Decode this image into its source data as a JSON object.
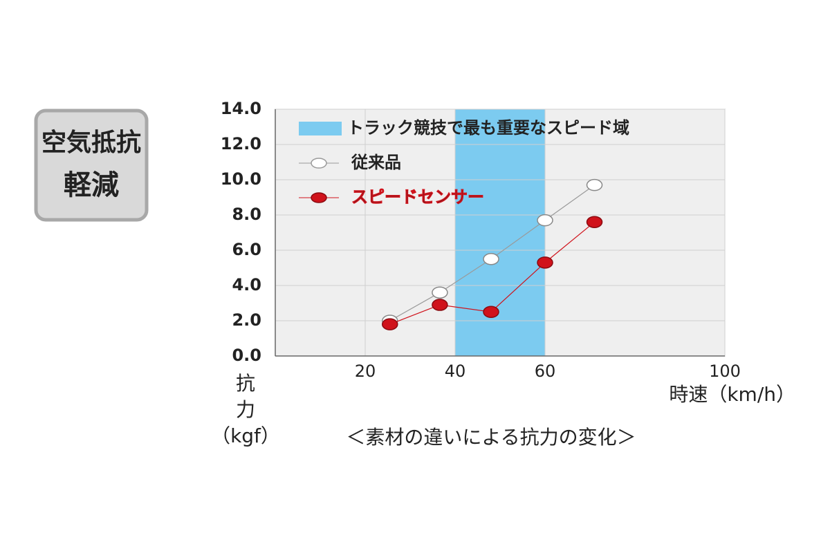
{
  "badge": {
    "lines": [
      "空気抵抗",
      "軽減"
    ]
  },
  "chart_data": {
    "type": "line",
    "y_label_lines": [
      "抗",
      "力",
      "（kgf）"
    ],
    "x_label": "時速（km/h）",
    "caption": "＜素材の違いによる抗力の変化＞",
    "band": {
      "label": "トラック競技で最も重要なスピード域",
      "range": [
        40,
        60
      ],
      "color": "#7ccbf0"
    },
    "x": [
      25.5,
      36.6,
      48,
      60,
      71
    ],
    "series": [
      {
        "name": "従来品",
        "color": "#9a9a9a",
        "values": [
          2.0,
          3.6,
          5.5,
          7.7,
          9.7
        ]
      },
      {
        "name": "スピードセンサー",
        "color": "#d0121b",
        "values": [
          1.8,
          2.9,
          2.5,
          5.3,
          7.6
        ]
      }
    ],
    "xlim": [
      0,
      100
    ],
    "xticks": [
      20,
      40,
      60,
      100
    ],
    "ylim": [
      0,
      14
    ],
    "yticks": [
      {
        "value": 0,
        "label": "0.0"
      },
      {
        "value": 2,
        "label": "2.0"
      },
      {
        "value": 4,
        "label": "4.0"
      },
      {
        "value": 6,
        "label": "6.0"
      },
      {
        "value": 8,
        "label": "8.0"
      },
      {
        "value": 10,
        "label": "10.0"
      },
      {
        "value": 12,
        "label": "12.0"
      },
      {
        "value": 14,
        "label": "14.0"
      }
    ],
    "grid": true
  }
}
